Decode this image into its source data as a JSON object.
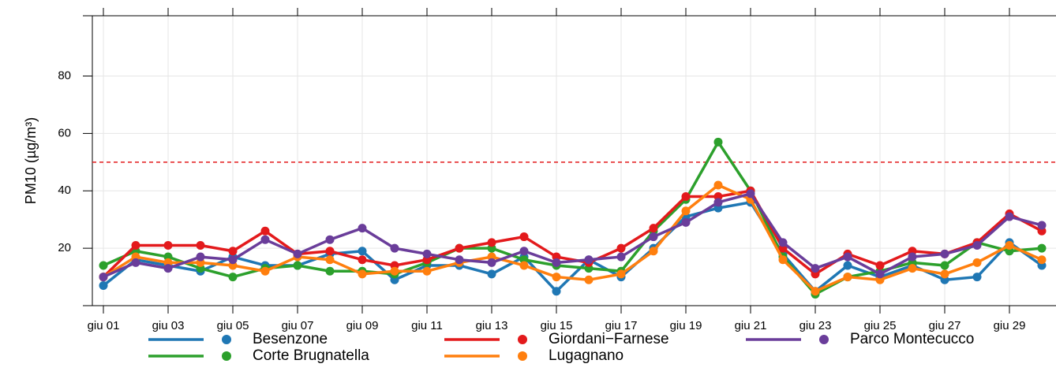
{
  "chart_data": {
    "type": "line",
    "y_label": "PM10 (µg/m³)",
    "categories": [
      "giu 01",
      null,
      "giu 03",
      null,
      "giu 05",
      null,
      "giu 07",
      null,
      "giu 09",
      null,
      "giu 11",
      null,
      "giu 13",
      null,
      "giu 15",
      null,
      "giu 17",
      null,
      "giu 19",
      null,
      "giu 21",
      null,
      "giu 23",
      null,
      "giu 25",
      null,
      "giu 27",
      null,
      "giu 29",
      null
    ],
    "series": [
      {
        "name": "Besenzone",
        "color": "#1f77b4",
        "values": [
          7,
          16,
          14,
          12,
          17,
          14,
          14,
          18,
          19,
          9,
          14,
          14,
          11,
          17,
          5,
          16,
          10,
          20,
          31,
          34,
          36,
          18,
          5,
          14,
          10,
          14,
          9,
          10,
          22,
          14
        ]
      },
      {
        "name": "Corte Brugnatella",
        "color": "#2ca02c",
        "values": [
          14,
          19,
          17,
          13,
          10,
          13,
          14,
          12,
          12,
          11,
          15,
          20,
          20,
          16,
          14,
          13,
          12,
          26,
          37,
          57,
          40,
          17,
          4,
          10,
          12,
          15,
          14,
          22,
          19,
          20
        ]
      },
      {
        "name": "Giordani−Farnese",
        "color": "#e31a1c",
        "values": [
          10,
          21,
          21,
          21,
          19,
          26,
          18,
          19,
          16,
          14,
          16,
          20,
          22,
          24,
          17,
          15,
          20,
          27,
          38,
          38,
          40,
          20,
          11,
          18,
          14,
          19,
          18,
          22,
          32,
          26
        ]
      },
      {
        "name": "Lugagnano",
        "color": "#ff7f0e",
        "values": [
          10,
          17,
          15,
          15,
          14,
          12,
          17,
          16,
          11,
          12,
          12,
          15,
          17,
          14,
          10,
          9,
          11,
          19,
          33,
          42,
          37,
          16,
          5,
          10,
          9,
          13,
          11,
          15,
          21,
          16
        ]
      },
      {
        "name": "Parco Montecucco",
        "color": "#6a3d9a",
        "values": [
          10,
          15,
          13,
          17,
          16,
          23,
          18,
          23,
          27,
          20,
          18,
          16,
          15,
          19,
          15,
          16,
          17,
          24,
          29,
          36,
          39,
          22,
          13,
          17,
          11,
          17,
          18,
          21,
          31,
          28
        ]
      }
    ],
    "threshold": 50,
    "threshold_color": "#e31a1c",
    "ylim": [
      0,
      101
    ],
    "yticks": [
      20,
      40,
      60,
      80
    ],
    "grid": true,
    "legend": "bottom"
  }
}
